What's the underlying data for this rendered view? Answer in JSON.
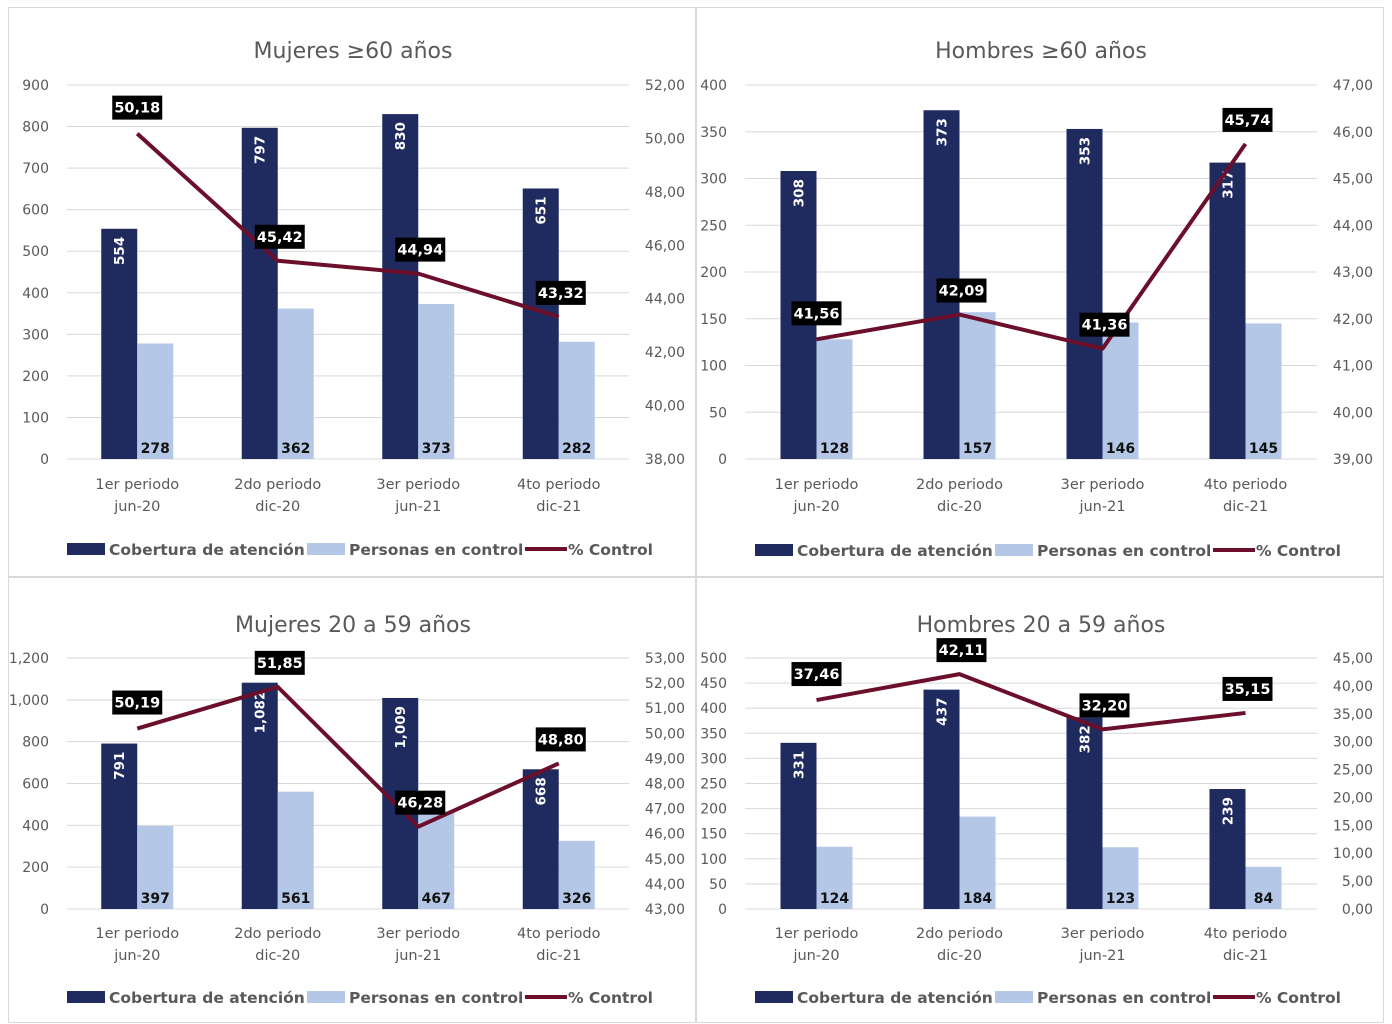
{
  "colors": {
    "cobertura": "#1F2A5F",
    "personas": "#B4C7E7",
    "control": "#6B0F2B",
    "grid": "#d9d9d9",
    "label_box": "#000000"
  },
  "legend": {
    "cobertura": "Cobertura de atención",
    "personas": "Personas en control",
    "control": "% Control"
  },
  "chart_data": [
    {
      "type": "bar",
      "title": "Mujeres ≥60 años",
      "categories": [
        [
          "1er periodo",
          "jun-20"
        ],
        [
          "2do periodo",
          "dic-20"
        ],
        [
          "3er periodo",
          "jun-21"
        ],
        [
          "4to periodo",
          "dic-21"
        ]
      ],
      "series": [
        {
          "name": "Cobertura de atención",
          "values": [
            554,
            797,
            830,
            651
          ],
          "labels": [
            "554",
            "797",
            "830",
            "651"
          ]
        },
        {
          "name": "Personas en control",
          "values": [
            278,
            362,
            373,
            282
          ],
          "labels": [
            "278",
            "362",
            "373",
            "282"
          ]
        },
        {
          "name": "% Control",
          "axis": "secondary",
          "type": "line",
          "values": [
            50.18,
            45.42,
            44.94,
            43.32
          ],
          "labels": [
            "50,18",
            "45,42",
            "44,94",
            "43,32"
          ]
        }
      ],
      "ylim": [
        0,
        900
      ],
      "yticks": [
        "0",
        "100",
        "200",
        "300",
        "400",
        "500",
        "600",
        "700",
        "800",
        "900"
      ],
      "y2lim": [
        38,
        52
      ],
      "y2ticks": [
        "38,00",
        "40,00",
        "42,00",
        "44,00",
        "46,00",
        "48,00",
        "50,00",
        "52,00"
      ]
    },
    {
      "type": "bar",
      "title": "Hombres ≥60 años",
      "categories": [
        [
          "1er periodo",
          "jun-20"
        ],
        [
          "2do periodo",
          "dic-20"
        ],
        [
          "3er periodo",
          "jun-21"
        ],
        [
          "4to periodo",
          "dic-21"
        ]
      ],
      "series": [
        {
          "name": "Cobertura de atención",
          "values": [
            308,
            373,
            353,
            317
          ],
          "labels": [
            "308",
            "373",
            "353",
            "317"
          ]
        },
        {
          "name": "Personas en control",
          "values": [
            128,
            157,
            146,
            145
          ],
          "labels": [
            "128",
            "157",
            "146",
            "145"
          ]
        },
        {
          "name": "% Control",
          "axis": "secondary",
          "type": "line",
          "values": [
            41.56,
            42.09,
            41.36,
            45.74
          ],
          "labels": [
            "41,56",
            "42,09",
            "41,36",
            "45,74"
          ]
        }
      ],
      "ylim": [
        0,
        400
      ],
      "yticks": [
        "0",
        "50",
        "100",
        "150",
        "200",
        "250",
        "300",
        "350",
        "400"
      ],
      "y2lim": [
        39,
        47
      ],
      "y2ticks": [
        "39,00",
        "40,00",
        "41,00",
        "42,00",
        "43,00",
        "44,00",
        "45,00",
        "46,00",
        "47,00"
      ]
    },
    {
      "type": "bar",
      "title": "Mujeres 20 a 59 años",
      "categories": [
        [
          "1er periodo",
          "jun-20"
        ],
        [
          "2do periodo",
          "dic-20"
        ],
        [
          "3er periodo",
          "jun-21"
        ],
        [
          "4to periodo",
          "dic-21"
        ]
      ],
      "series": [
        {
          "name": "Cobertura de atención",
          "values": [
            791,
            1082,
            1009,
            668
          ],
          "labels": [
            "791",
            "1,082",
            "1,009",
            "668"
          ]
        },
        {
          "name": "Personas en control",
          "values": [
            397,
            561,
            467,
            326
          ],
          "labels": [
            "397",
            "561",
            "467",
            "326"
          ]
        },
        {
          "name": "% Control",
          "axis": "secondary",
          "type": "line",
          "values": [
            50.19,
            51.85,
            46.28,
            48.8
          ],
          "labels": [
            "50,19",
            "51,85",
            "46,28",
            "48,80"
          ]
        }
      ],
      "ylim": [
        0,
        1200
      ],
      "yticks": [
        "0",
        "200",
        "400",
        "600",
        "800",
        "1,000",
        "1,200"
      ],
      "y2lim": [
        43,
        53
      ],
      "y2ticks": [
        "43,00",
        "44,00",
        "45,00",
        "46,00",
        "47,00",
        "48,00",
        "49,00",
        "50,00",
        "51,00",
        "52,00",
        "53,00"
      ]
    },
    {
      "type": "bar",
      "title": "Hombres 20 a 59 años",
      "categories": [
        [
          "1er periodo",
          "jun-20"
        ],
        [
          "2do periodo",
          "dic-20"
        ],
        [
          "3er periodo",
          "jun-21"
        ],
        [
          "4to periodo",
          "dic-21"
        ]
      ],
      "series": [
        {
          "name": "Cobertura de atención",
          "values": [
            331,
            437,
            382,
            239
          ],
          "labels": [
            "331",
            "437",
            "382",
            "239"
          ]
        },
        {
          "name": "Personas en control",
          "values": [
            124,
            184,
            123,
            84
          ],
          "labels": [
            "124",
            "184",
            "123",
            "84"
          ]
        },
        {
          "name": "% Control",
          "axis": "secondary",
          "type": "line",
          "values": [
            37.46,
            42.11,
            32.2,
            35.15
          ],
          "labels": [
            "37,46",
            "42,11",
            "32,20",
            "35,15"
          ]
        }
      ],
      "ylim": [
        0,
        500
      ],
      "yticks": [
        "0",
        "50",
        "100",
        "150",
        "200",
        "250",
        "300",
        "350",
        "400",
        "450",
        "500"
      ],
      "y2lim": [
        0,
        45
      ],
      "y2ticks": [
        "0,00",
        "5,00",
        "10,00",
        "15,00",
        "20,00",
        "25,00",
        "30,00",
        "35,00",
        "40,00",
        "45,00"
      ]
    }
  ]
}
